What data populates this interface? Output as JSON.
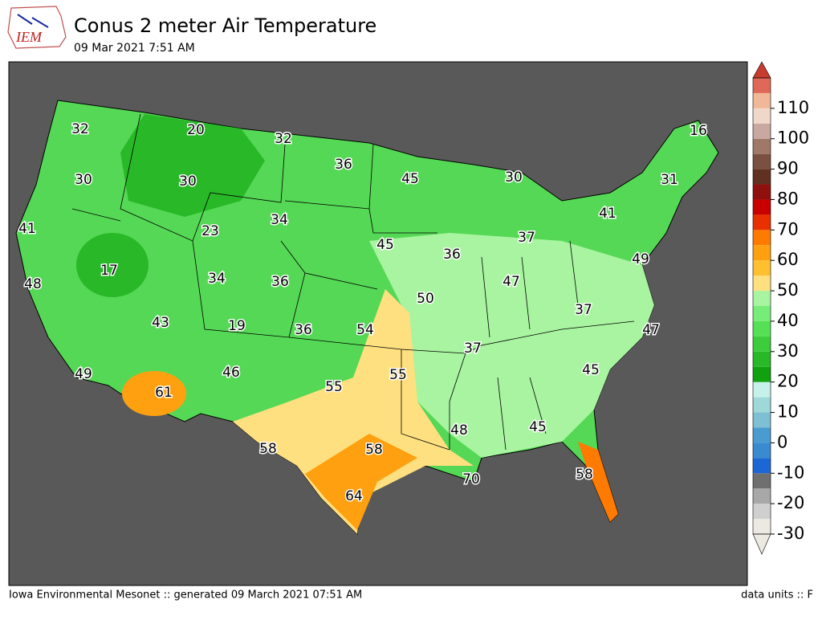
{
  "header": {
    "logo_text": "IEM",
    "title": "Conus 2 meter Air Temperature",
    "subtitle": "09 Mar 2021 7:51 AM"
  },
  "footer": {
    "left": "Iowa Environmental Mesonet :: generated 09 March 2021 07:51 AM",
    "right": "data units :: F"
  },
  "colorbar": {
    "lim": [
      -30,
      120
    ],
    "ticks": [
      -30,
      -20,
      -10,
      0,
      10,
      20,
      30,
      40,
      50,
      60,
      70,
      80,
      90,
      100,
      110
    ],
    "colors": [
      "#ece9e3",
      "#cfcfcf",
      "#a8a8a8",
      "#6f6f6f",
      "#1c66d6",
      "#3a8ad0",
      "#4a9bd0",
      "#7fbfd4",
      "#9ed8d8",
      "#c6f0ea",
      "#10a010",
      "#28b828",
      "#3ccc3c",
      "#55e055",
      "#78ec78",
      "#a8f4a0",
      "#ffe080",
      "#ffc030",
      "#ffa010",
      "#ff7a00",
      "#e83000",
      "#c80000",
      "#901010",
      "#603020",
      "#7a5040",
      "#a07868",
      "#c8a8a0",
      "#f0d8c8",
      "#f0b898",
      "#e06858"
    ],
    "over_color": "#c83c30",
    "under_color": "#ece9e3"
  },
  "stations": [
    32,
    20,
    32,
    16,
    30,
    30,
    36,
    45,
    30,
    31,
    41,
    41,
    23,
    34,
    45,
    36,
    37,
    49,
    17,
    48,
    34,
    36,
    47,
    50,
    37,
    43,
    19,
    36,
    54,
    47,
    37,
    49,
    46,
    55,
    45,
    61,
    55,
    48,
    45,
    58,
    58,
    70,
    58,
    64
  ]
}
